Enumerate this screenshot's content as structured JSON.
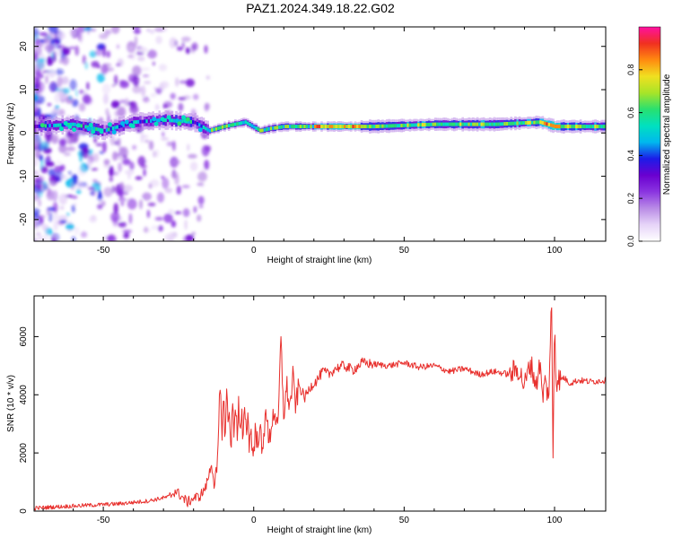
{
  "title": "PAZ1.2024.349.18.22.G02",
  "colors": {
    "snr_line": "#e8302d",
    "axis": "#000000",
    "spectrum_scale": [
      "#ffffff",
      "#e6d4f8",
      "#b98be6",
      "#8a34e0",
      "#6a00d0",
      "#1c1ce8",
      "#00b8ee",
      "#00e0c0",
      "#28e070",
      "#a8e428",
      "#f0e020",
      "#ff8a10",
      "#f03020",
      "#ff10a0"
    ]
  },
  "chart_data": [
    {
      "type": "heatmap",
      "xlabel": "Height of straight line (km)",
      "ylabel": "Frequency (Hz)",
      "xlim": [
        -73,
        117
      ],
      "ylim": [
        -25,
        24.5
      ],
      "xticks": [
        -50,
        0,
        50,
        100
      ],
      "yticks": [
        -20,
        -10,
        0,
        10,
        20
      ],
      "grid": false,
      "colorbar": {
        "label": "Normalized spectral amplitude",
        "range": [
          0,
          1
        ],
        "ticks": [
          0.0,
          0.2,
          0.4,
          0.6,
          0.8
        ]
      },
      "ridge": [
        {
          "x": -73,
          "freq": 1.5
        },
        {
          "x": -60,
          "freq": 2
        },
        {
          "x": -50,
          "freq": 0.5
        },
        {
          "x": -40,
          "freq": 2.5
        },
        {
          "x": -30,
          "freq": 3
        },
        {
          "x": -20,
          "freq": 2.5
        },
        {
          "x": -15,
          "freq": 0.5
        },
        {
          "x": -10,
          "freq": 1.5
        },
        {
          "x": -3,
          "freq": 2.5
        },
        {
          "x": 2,
          "freq": 0.5
        },
        {
          "x": 5,
          "freq": 1
        },
        {
          "x": 10,
          "freq": 1.5
        },
        {
          "x": 20,
          "freq": 1.5
        },
        {
          "x": 40,
          "freq": 1.5
        },
        {
          "x": 60,
          "freq": 2
        },
        {
          "x": 80,
          "freq": 2
        },
        {
          "x": 95,
          "freq": 2.5
        },
        {
          "x": 100,
          "freq": 1.5
        },
        {
          "x": 117,
          "freq": 1.5
        }
      ]
    },
    {
      "type": "line",
      "xlabel": "Height of straight line (km)",
      "ylabel": "SNR (10 * v/v)",
      "xlim": [
        -73,
        117
      ],
      "ylim": [
        0,
        7400
      ],
      "xticks": [
        -50,
        0,
        50,
        100
      ],
      "yticks": [
        0,
        2000,
        4000,
        6000
      ],
      "grid": false,
      "series": [
        {
          "x": [
            -73,
            -65,
            -55,
            -45,
            -35,
            -28,
            -26,
            -22,
            -20,
            -18,
            -16,
            -15,
            -14,
            -13,
            -12,
            -11.5,
            -11,
            -10.5,
            -10,
            -9.5,
            -9,
            -8.5,
            -8,
            -7.5,
            -7,
            -6.5,
            -6,
            -5.5,
            -5,
            -4.5,
            -4,
            -3.5,
            -3,
            -2.5,
            -2,
            -1.5,
            -1,
            -0.5,
            0,
            0.5,
            1,
            2,
            3,
            4,
            5,
            6,
            7,
            8,
            9,
            10,
            11,
            12,
            13,
            14,
            15,
            17,
            19,
            21,
            23,
            25,
            27,
            30,
            33,
            36,
            40,
            45,
            50,
            55,
            60,
            65,
            70,
            75,
            80,
            85,
            88,
            90,
            92,
            94,
            95,
            96,
            97,
            98,
            99,
            99.5,
            100,
            100.5,
            101,
            102,
            103,
            105,
            108,
            112,
            117
          ],
          "values": [
            100,
            150,
            200,
            250,
            350,
            500,
            700,
            300,
            450,
            500,
            800,
            1200,
            1650,
            800,
            1500,
            3500,
            4100,
            2800,
            3800,
            2600,
            4100,
            3000,
            3400,
            2200,
            3600,
            2800,
            3900,
            2500,
            3700,
            2400,
            3300,
            2200,
            3900,
            2700,
            3300,
            2400,
            2900,
            2000,
            2100,
            2800,
            2300,
            2900,
            1800,
            3800,
            2200,
            3100,
            3500,
            2600,
            5900,
            3300,
            4300,
            3500,
            4600,
            3600,
            4300,
            3900,
            4300,
            4500,
            4800,
            4700,
            4900,
            5000,
            4850,
            5100,
            5050,
            5000,
            5100,
            4950,
            5000,
            4800,
            4900,
            4700,
            4800,
            4700,
            4900,
            4300,
            5100,
            4300,
            5200,
            3900,
            4500,
            3800,
            7200,
            1700,
            6800,
            4400,
            4600,
            4500,
            4600,
            4400,
            4500,
            4450,
            4500
          ]
        }
      ]
    }
  ]
}
